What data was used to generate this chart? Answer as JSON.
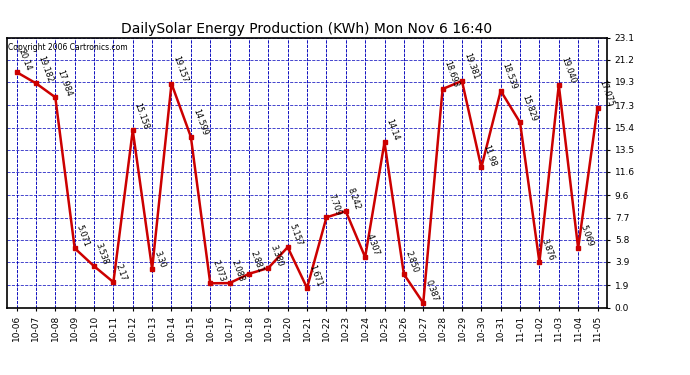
{
  "title": "DailySolar Energy Production (KWh) Mon Nov 6 16:40",
  "copyright": "Copyright 2006 Cartronics.com",
  "dates": [
    "10-06",
    "10-07",
    "10-08",
    "10-09",
    "10-10",
    "10-11",
    "10-12",
    "10-13",
    "10-14",
    "10-15",
    "10-16",
    "10-17",
    "10-18",
    "10-19",
    "10-20",
    "10-21",
    "10-22",
    "10-23",
    "10-24",
    "10-25",
    "10-26",
    "10-27",
    "10-28",
    "10-29",
    "10-30",
    "10-31",
    "11-01",
    "11-02",
    "11-03",
    "11-04",
    "11-05"
  ],
  "values": [
    20.14,
    19.182,
    17.984,
    5.071,
    3.538,
    2.17,
    15.158,
    3.3,
    19.157,
    14.599,
    2.073,
    2.088,
    2.881,
    3.38,
    5.157,
    1.671,
    7.709,
    8.242,
    4.307,
    14.14,
    2.85,
    0.387,
    18.693,
    19.381,
    11.98,
    18.539,
    15.829,
    3.876,
    19.04,
    5.069,
    17.075
  ],
  "labels": [
    "20.14",
    "19.182",
    "17.984",
    "5.071",
    "3.538",
    "2.17",
    "15.158",
    "3.30",
    "19.157",
    "14.599",
    "2.073",
    "2.088",
    "2.881",
    "3.380",
    "5.157",
    "1.671",
    "7.709",
    "8.242",
    "4.307",
    "14.14",
    "2.850",
    "0.387",
    "18.693",
    "19.381",
    "11.98",
    "18.539",
    "15.829",
    "3.876",
    "19.040",
    "5.069",
    "17.075"
  ],
  "yticks": [
    0.0,
    1.9,
    3.9,
    5.8,
    7.7,
    9.6,
    11.6,
    13.5,
    15.4,
    17.3,
    19.3,
    21.2,
    23.1
  ],
  "line_color": "#cc0000",
  "marker_color": "#cc0000",
  "bg_color": "#ffffff",
  "grid_color": "#0000bb",
  "text_color": "#000000",
  "title_fontsize": 10,
  "label_fontsize": 5.8,
  "tick_fontsize": 6.5,
  "ymin": 0.0,
  "ymax": 23.1
}
